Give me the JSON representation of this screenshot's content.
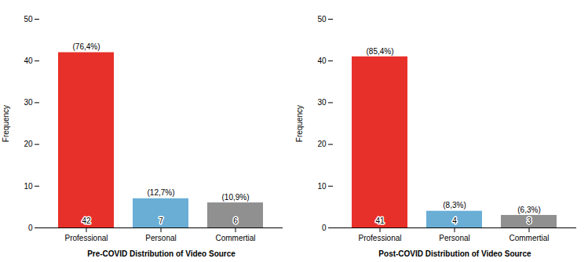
{
  "chart_data": [
    {
      "type": "bar",
      "xlabel": "Pre-COVID Distribution of Video Source",
      "ylabel": "Frequency",
      "categories": [
        "Professional",
        "Personal",
        "Commertial"
      ],
      "values": [
        42,
        7,
        6
      ],
      "percentages": [
        76.4,
        12.7,
        10.9
      ],
      "percentage_labels": [
        "(76,4%)",
        "(12,7%)",
        "(10,9%)"
      ],
      "colors": [
        "#e8302a",
        "#6aaed6",
        "#909090"
      ],
      "ylim": [
        0,
        50
      ],
      "yticks": [
        0,
        10,
        20,
        30,
        40,
        50
      ],
      "grid": false,
      "data_labels": true
    },
    {
      "type": "bar",
      "xlabel": "Post-COVID Distribution of Video Source",
      "ylabel": "Frequency",
      "categories": [
        "Professional",
        "Personal",
        "Commertial"
      ],
      "values": [
        41,
        4,
        3
      ],
      "percentages": [
        85.4,
        8.3,
        6.3
      ],
      "percentage_labels": [
        "(85,4%)",
        "(8,3%)",
        "(6,3%)"
      ],
      "colors": [
        "#e8302a",
        "#6aaed6",
        "#909090"
      ],
      "ylim": [
        0,
        50
      ],
      "yticks": [
        0,
        10,
        20,
        30,
        40,
        50
      ],
      "grid": false,
      "data_labels": true
    }
  ]
}
